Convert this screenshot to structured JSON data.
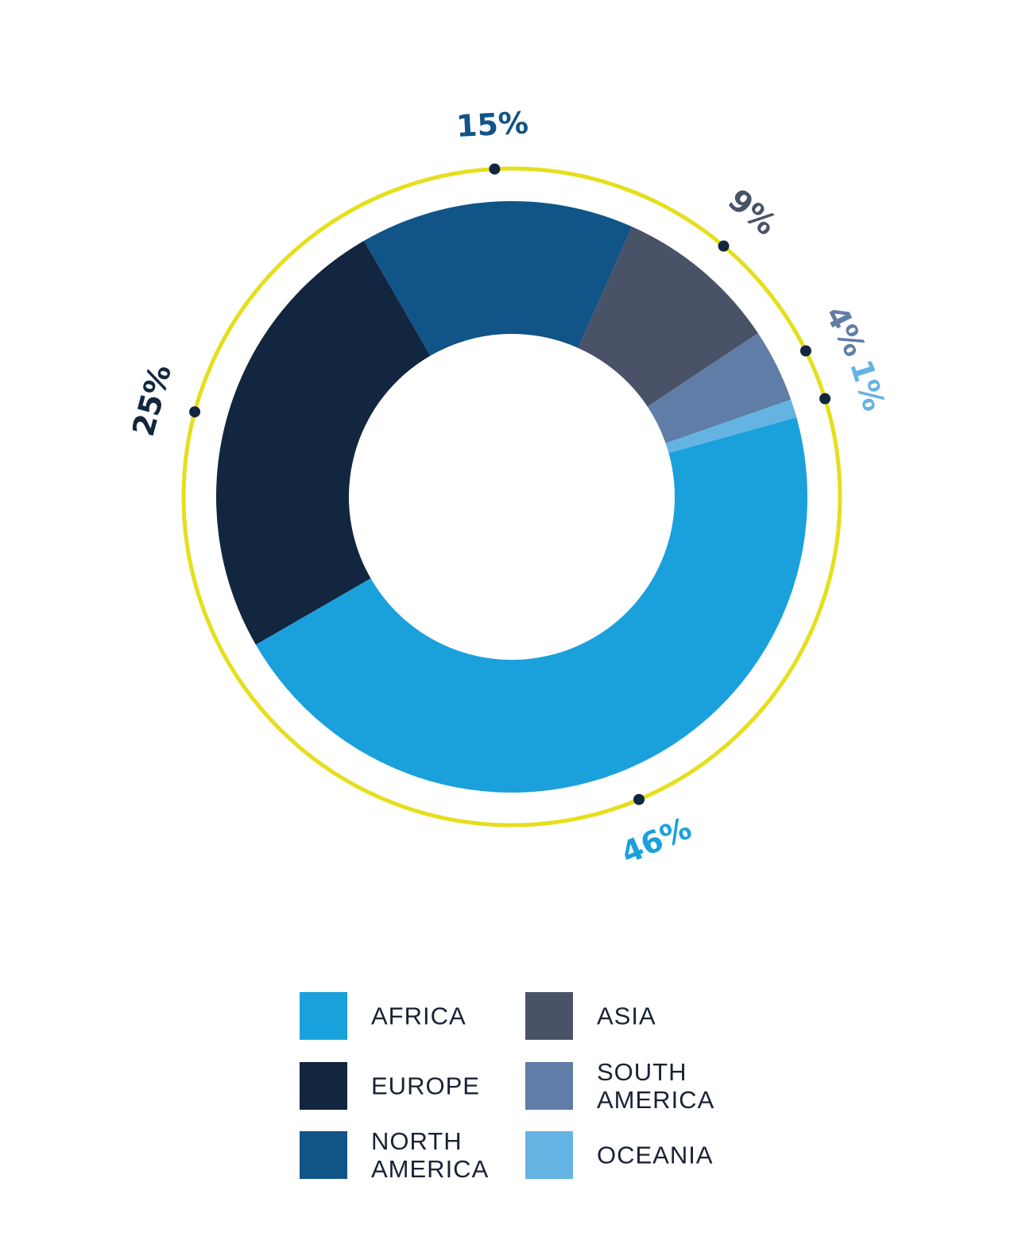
{
  "chart_data": {
    "type": "pie",
    "variant": "donut",
    "title": "",
    "series": [
      {
        "name": "AFRICA",
        "value": 46,
        "label": "46%",
        "color": "#1aa1dc"
      },
      {
        "name": "EUROPE",
        "value": 25,
        "label": "25%",
        "color": "#12263f"
      },
      {
        "name": "NORTH AMERICA",
        "value": 15,
        "label": "15%",
        "color": "#115487"
      },
      {
        "name": "ASIA",
        "value": 9,
        "label": "9%",
        "color": "#4a5267"
      },
      {
        "name": "SOUTH AMERICA",
        "value": 4,
        "label": "4%",
        "color": "#5f7da6"
      },
      {
        "name": "OCEANIA",
        "value": 1,
        "label": "1%",
        "color": "#65b3e3"
      }
    ],
    "legend": {
      "placement": "bottom",
      "columns": [
        [
          {
            "series": "AFRICA",
            "lines": [
              "AFRICA"
            ]
          },
          {
            "series": "EUROPE",
            "lines": [
              "EUROPE"
            ]
          },
          {
            "series": "NORTH AMERICA",
            "lines": [
              "NORTH",
              "AMERICA"
            ]
          }
        ],
        [
          {
            "series": "ASIA",
            "lines": [
              "ASIA"
            ]
          },
          {
            "series": "SOUTH AMERICA",
            "lines": [
              "SOUTH",
              "AMERICA"
            ]
          },
          {
            "series": "OCEANIA",
            "lines": [
              "OCEANIA"
            ]
          }
        ]
      ]
    },
    "outer_ring_color": "#e5df1d",
    "marker_color": "#12263f"
  }
}
